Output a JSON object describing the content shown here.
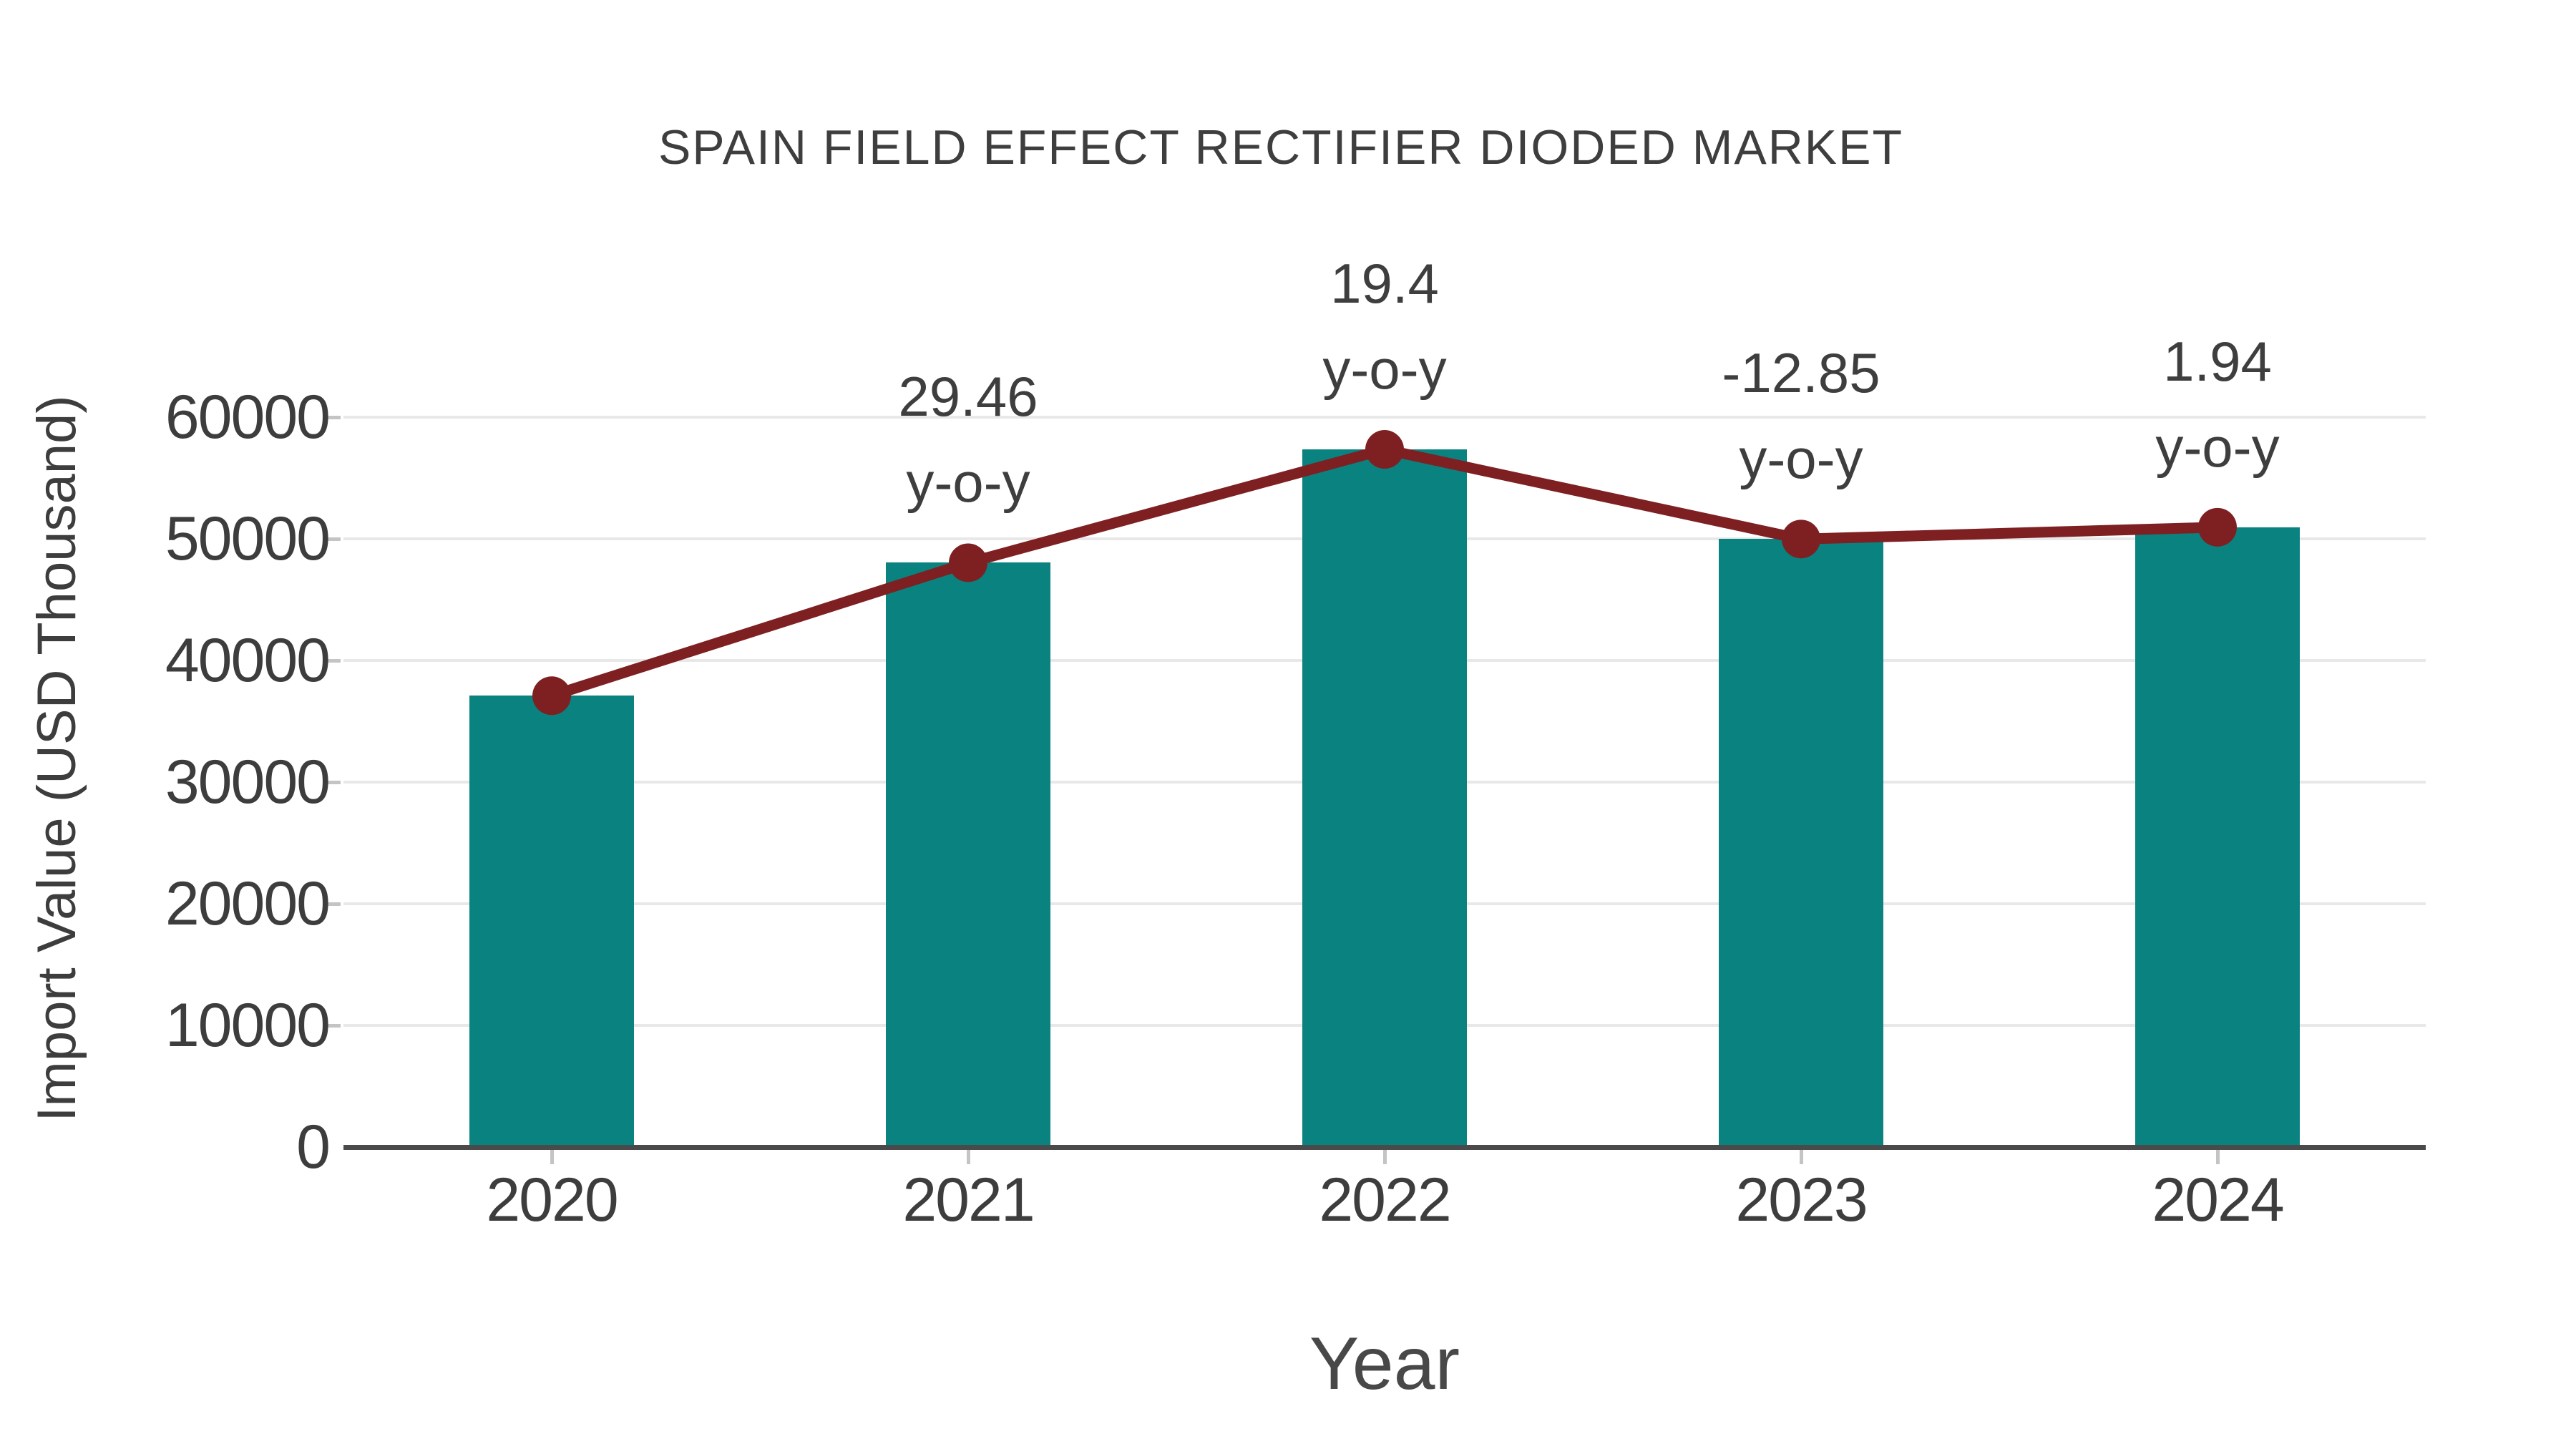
{
  "chart_data": {
    "type": "bar",
    "subtype": "bar-with-line-overlay",
    "title": "SPAIN FIELD EFFECT RECTIFIER DIODED MARKET",
    "xlabel": "Year",
    "ylabel": "Import Value (USD Thousand)",
    "categories": [
      "2020",
      "2021",
      "2022",
      "2023",
      "2024"
    ],
    "series": [
      {
        "name": "Import Value",
        "type": "bar",
        "color": "#0a8280",
        "values": [
          37100,
          48030,
          57350,
          49980,
          50950
        ]
      },
      {
        "name": "Trend",
        "type": "line",
        "color": "#7e2022",
        "values": [
          37100,
          48030,
          57350,
          49980,
          50950
        ]
      }
    ],
    "annotations": [
      {
        "category": "2021",
        "value": "29.46",
        "unit": "y-o-y"
      },
      {
        "category": "2022",
        "value": "19.4",
        "unit": "y-o-y"
      },
      {
        "category": "2023",
        "value": "-12.85",
        "unit": "y-o-y"
      },
      {
        "category": "2024",
        "value": "1.94",
        "unit": "y-o-y"
      }
    ],
    "yticks": [
      0,
      10000,
      20000,
      30000,
      40000,
      50000,
      60000
    ],
    "ylim": [
      0,
      60000
    ],
    "grid": true,
    "legend": false,
    "colors": {
      "bar": "#0a8280",
      "line": "#7e2022",
      "marker": "#7e2022",
      "text": "#3d3d3d",
      "grid": "#e8e8e8",
      "axis": "#4a4a4a",
      "tick": "#c4c4c4",
      "background": "#ffffff"
    }
  }
}
